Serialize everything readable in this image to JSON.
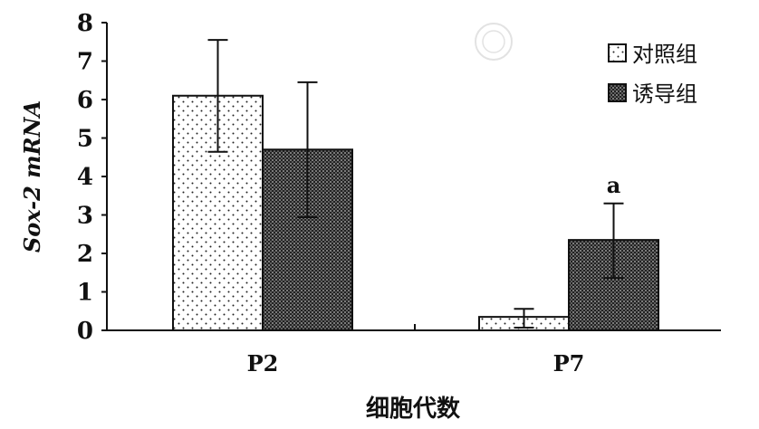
{
  "chart_data": {
    "type": "bar",
    "title": "",
    "xlabel": "细胞代数",
    "ylabel": "Sox-2 mRNA",
    "ylim": [
      0,
      8
    ],
    "yticks": [
      0,
      1,
      2,
      3,
      4,
      5,
      6,
      7,
      8
    ],
    "categories": [
      "P2",
      "P7"
    ],
    "series": [
      {
        "name": "对照组",
        "values": [
          6.1,
          0.35
        ],
        "error_high": [
          7.55,
          0.56
        ],
        "error_low": [
          4.64,
          0.07
        ],
        "pattern": "sparse-dots"
      },
      {
        "name": "诱导组",
        "values": [
          4.7,
          2.35
        ],
        "error_high": [
          6.45,
          3.3
        ],
        "error_low": [
          2.94,
          1.36
        ],
        "pattern": "dense-dots"
      }
    ],
    "annotations": [
      {
        "category": "P7",
        "series": "诱导组",
        "text": "a"
      }
    ],
    "legend": "top-right",
    "grid": false
  }
}
